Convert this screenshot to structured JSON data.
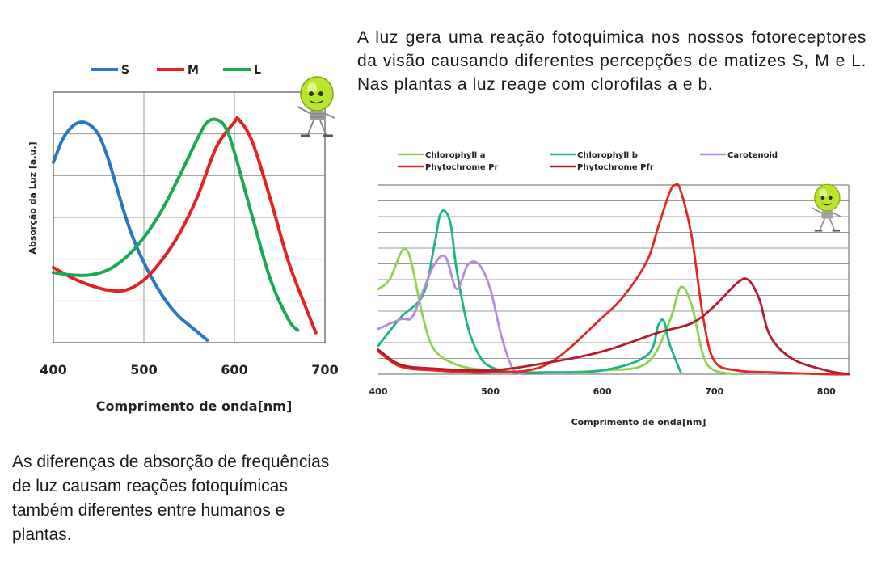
{
  "text": {
    "paragraph_top": "A luz gera uma reação fotoquimica nos nossos fotoreceptores da visão causando diferentes percepções de matizes S, M e L. Nas plantas a luz reage com clorofilas a e b.",
    "paragraph_bottom": "As diferenças de absorção de frequências de luz causam reações fotoquímicas também diferentes entre humanos e plantas."
  },
  "chart_data": [
    {
      "type": "line",
      "title": "",
      "xlabel": "Comprimento de onda[nm]",
      "ylabel": "Absorção da Luz [a.u.]",
      "xlim": [
        400,
        700
      ],
      "ylim": [
        0,
        1
      ],
      "xticks": [
        400,
        500,
        600,
        700
      ],
      "grid": true,
      "legend_position": "top",
      "series": [
        {
          "name": "S",
          "color": "#2877c4",
          "x": [
            400,
            410,
            420,
            430,
            440,
            450,
            460,
            470,
            480,
            490,
            500,
            510,
            520,
            530,
            540,
            550,
            560,
            570
          ],
          "y": [
            0.72,
            0.81,
            0.86,
            0.88,
            0.87,
            0.83,
            0.74,
            0.62,
            0.5,
            0.4,
            0.32,
            0.25,
            0.19,
            0.14,
            0.1,
            0.07,
            0.04,
            0.01
          ]
        },
        {
          "name": "M",
          "color": "#e32222",
          "x": [
            400,
            420,
            440,
            460,
            480,
            500,
            520,
            540,
            560,
            580,
            600,
            605,
            620,
            640,
            660,
            680,
            690
          ],
          "y": [
            0.3,
            0.26,
            0.23,
            0.21,
            0.21,
            0.25,
            0.33,
            0.44,
            0.59,
            0.78,
            0.88,
            0.89,
            0.8,
            0.57,
            0.32,
            0.13,
            0.04
          ]
        },
        {
          "name": "L",
          "color": "#1aa854",
          "x": [
            400,
            420,
            440,
            460,
            480,
            500,
            520,
            540,
            560,
            570,
            580,
            590,
            600,
            620,
            640,
            660,
            670
          ],
          "y": [
            0.28,
            0.27,
            0.27,
            0.29,
            0.34,
            0.42,
            0.53,
            0.67,
            0.82,
            0.88,
            0.89,
            0.86,
            0.76,
            0.5,
            0.25,
            0.09,
            0.05
          ]
        }
      ]
    },
    {
      "type": "line",
      "title": "",
      "xlabel": "Comprimento de onda[nm]",
      "ylabel": "",
      "xlim": [
        400,
        820
      ],
      "ylim": [
        0,
        1
      ],
      "xticks": [
        400,
        500,
        600,
        700,
        800
      ],
      "grid": true,
      "legend_position": "top",
      "series": [
        {
          "name": "Chlorophyll a",
          "color": "#8dd350",
          "x": [
            400,
            410,
            420,
            425,
            430,
            440,
            450,
            470,
            500,
            550,
            600,
            640,
            660,
            670,
            680,
            690,
            700,
            720
          ],
          "y": [
            0.45,
            0.5,
            0.64,
            0.66,
            0.58,
            0.3,
            0.13,
            0.05,
            0.02,
            0.01,
            0.02,
            0.06,
            0.28,
            0.46,
            0.36,
            0.1,
            0.02,
            0.0
          ]
        },
        {
          "name": "Chlorophyll b",
          "color": "#1fb38a",
          "x": [
            400,
            420,
            440,
            450,
            455,
            460,
            465,
            470,
            480,
            490,
            500,
            520,
            550,
            600,
            640,
            650,
            655,
            660,
            670
          ],
          "y": [
            0.15,
            0.3,
            0.42,
            0.68,
            0.84,
            0.86,
            0.78,
            0.55,
            0.25,
            0.1,
            0.04,
            0.01,
            0.01,
            0.02,
            0.1,
            0.26,
            0.28,
            0.16,
            0.01
          ]
        },
        {
          "name": "Carotenoid",
          "color": "#b68bdb",
          "x": [
            400,
            420,
            430,
            440,
            450,
            460,
            470,
            480,
            490,
            500,
            510,
            520,
            530
          ],
          "y": [
            0.24,
            0.29,
            0.3,
            0.44,
            0.58,
            0.62,
            0.45,
            0.58,
            0.58,
            0.45,
            0.2,
            0.03,
            0.0
          ]
        },
        {
          "name": "Phytochrome Pr",
          "color": "#e02828",
          "x": [
            400,
            420,
            450,
            500,
            550,
            600,
            620,
            640,
            650,
            660,
            665,
            670,
            680,
            690,
            700,
            720,
            750,
            800,
            820
          ],
          "y": [
            0.12,
            0.04,
            0.02,
            0.01,
            0.05,
            0.3,
            0.42,
            0.6,
            0.78,
            0.96,
            1.0,
            0.97,
            0.72,
            0.3,
            0.07,
            0.02,
            0.01,
            0.0,
            0.0
          ]
        },
        {
          "name": "Phytochrome Pfr",
          "color": "#b41c2c",
          "x": [
            400,
            420,
            450,
            500,
            550,
            600,
            650,
            680,
            700,
            720,
            730,
            740,
            750,
            770,
            800,
            820
          ],
          "y": [
            0.13,
            0.05,
            0.03,
            0.02,
            0.06,
            0.12,
            0.22,
            0.27,
            0.36,
            0.48,
            0.5,
            0.4,
            0.2,
            0.08,
            0.02,
            0.0
          ]
        }
      ]
    }
  ],
  "icons": [
    "lightbulb-mascot-icon"
  ]
}
